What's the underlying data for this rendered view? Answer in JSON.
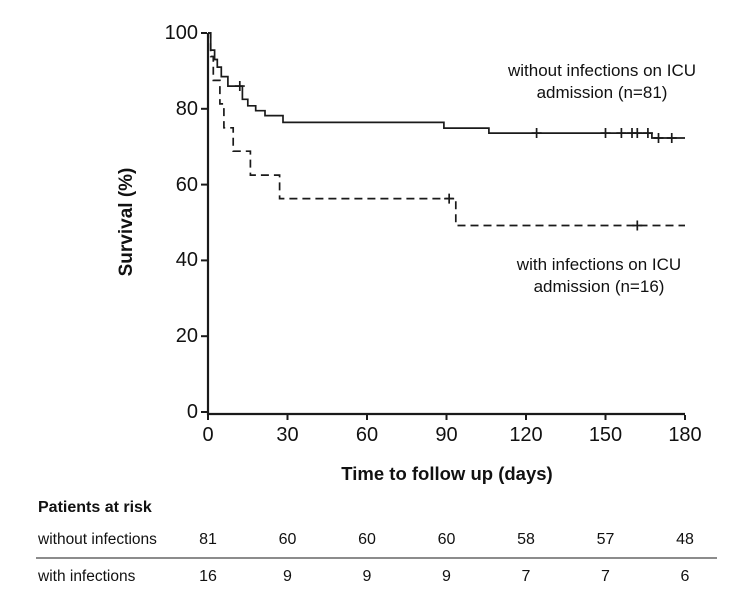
{
  "chart_data": {
    "type": "line",
    "subtype": "kaplan-meier-step-curves",
    "title": "",
    "xlabel": "Time to follow up (days)",
    "ylabel": "Survival (%)",
    "xlim": [
      0,
      180
    ],
    "ylim": [
      0,
      100
    ],
    "xticks": [
      0,
      30,
      60,
      90,
      120,
      150,
      180
    ],
    "yticks": [
      0,
      20,
      40,
      60,
      80,
      100
    ],
    "grid": false,
    "legend_position": "annotations-inside-plot",
    "line_color": "#1a1a1a",
    "series": [
      {
        "name": "without infections on ICU admission (n=81)",
        "n": 81,
        "line_style": "solid",
        "steps": [
          [
            0,
            100
          ],
          [
            1,
            95.5
          ],
          [
            2.5,
            93
          ],
          [
            3.5,
            91
          ],
          [
            5,
            88.5
          ],
          [
            7.5,
            86
          ],
          [
            13,
            82.5
          ],
          [
            15,
            80.8
          ],
          [
            18,
            79.5
          ],
          [
            21.5,
            78.2
          ],
          [
            28.3,
            76.4
          ],
          [
            89,
            74.9
          ],
          [
            106,
            73.6
          ],
          [
            167.5,
            72.3
          ]
        ],
        "end_time": 180,
        "censor_marks": [
          [
            12,
            86
          ],
          [
            124,
            73.6
          ],
          [
            150,
            73.6
          ],
          [
            156,
            73.6
          ],
          [
            160,
            73.6
          ],
          [
            162,
            73.6
          ],
          [
            166,
            73.6
          ],
          [
            170,
            72.3
          ],
          [
            175,
            72.3
          ]
        ]
      },
      {
        "name": "with infections on ICU admission (n=16)",
        "n": 16,
        "line_style": "dashed",
        "steps": [
          [
            0,
            100
          ],
          [
            1,
            93.8
          ],
          [
            2,
            87.5
          ],
          [
            4.5,
            81.3
          ],
          [
            6,
            75
          ],
          [
            9.5,
            68.8
          ],
          [
            16,
            62.5
          ],
          [
            27,
            56.3
          ],
          [
            93.5,
            49.2
          ]
        ],
        "end_time": 180,
        "censor_marks": [
          [
            91,
            56.3
          ],
          [
            162,
            49.2
          ]
        ]
      }
    ]
  },
  "annotations": {
    "group1": {
      "line1": "without infections on ICU",
      "line2": "admission (n=81)"
    },
    "group2": {
      "line1": "with infections on ICU",
      "line2": "admission (n=16)"
    }
  },
  "patients_at_risk": {
    "title": "Patients at risk",
    "times": [
      0,
      30,
      60,
      90,
      120,
      150,
      180
    ],
    "rows": [
      {
        "label": "without infections",
        "counts": [
          "81",
          "60",
          "60",
          "60",
          "58",
          "57",
          "48"
        ]
      },
      {
        "label": "with infections",
        "counts": [
          "16",
          "9",
          "9",
          "9",
          "7",
          "7",
          "6"
        ]
      }
    ],
    "separator_color": "#666666"
  }
}
